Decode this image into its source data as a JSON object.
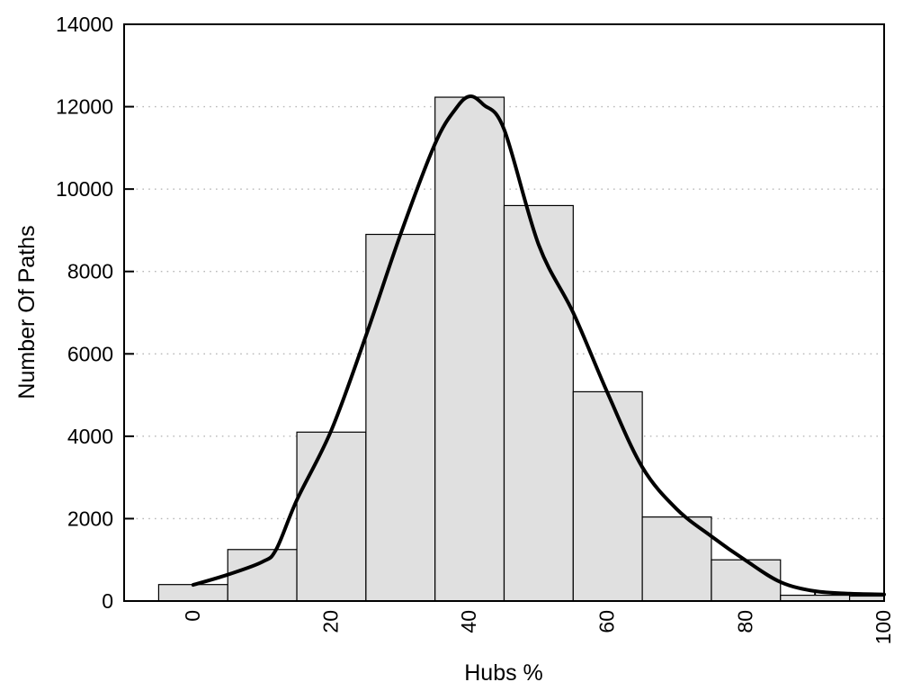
{
  "chart_data": {
    "type": "bar",
    "title": "",
    "xlabel": "Hubs %",
    "ylabel": "Number Of Paths",
    "xlim": [
      -10,
      100
    ],
    "ylim": [
      0,
      14000
    ],
    "x_ticks": [
      0,
      20,
      40,
      60,
      80,
      100
    ],
    "x_minor_tick_step": 10,
    "y_ticks": [
      0,
      2000,
      4000,
      6000,
      8000,
      10000,
      12000,
      14000
    ],
    "grid": "horizontal-dotted",
    "legend": "none",
    "x_tick_label_rotation_deg": -90,
    "bars": [
      {
        "x0": -5,
        "x1": 5,
        "value": 400
      },
      {
        "x0": 5,
        "x1": 15,
        "value": 1250
      },
      {
        "x0": 15,
        "x1": 25,
        "value": 4100
      },
      {
        "x0": 25,
        "x1": 35,
        "value": 8900
      },
      {
        "x0": 35,
        "x1": 45,
        "value": 12230
      },
      {
        "x0": 45,
        "x1": 55,
        "value": 9600
      },
      {
        "x0": 55,
        "x1": 65,
        "value": 5080
      },
      {
        "x0": 65,
        "x1": 75,
        "value": 2040
      },
      {
        "x0": 75,
        "x1": 85,
        "value": 1000
      },
      {
        "x0": 85,
        "x1": 95,
        "value": 140
      },
      {
        "x0": 95,
        "x1": 100,
        "value": 120
      }
    ],
    "curve": {
      "name": "density-curve",
      "points": [
        [
          0,
          390
        ],
        [
          5,
          640
        ],
        [
          10,
          950
        ],
        [
          12,
          1250
        ],
        [
          15,
          2450
        ],
        [
          20,
          4150
        ],
        [
          25,
          6440
        ],
        [
          30,
          8900
        ],
        [
          35,
          11100
        ],
        [
          38,
          11950
        ],
        [
          40,
          12250
        ],
        [
          42,
          12050
        ],
        [
          45,
          11450
        ],
        [
          50,
          8650
        ],
        [
          55,
          7000
        ],
        [
          60,
          5040
        ],
        [
          65,
          3250
        ],
        [
          70,
          2230
        ],
        [
          75,
          1570
        ],
        [
          80,
          980
        ],
        [
          85,
          460
        ],
        [
          90,
          240
        ],
        [
          95,
          180
        ],
        [
          100,
          160
        ]
      ]
    },
    "colors": {
      "background": "#ffffff",
      "bar_fill": "#e0e0e0",
      "bar_border": "#000000",
      "curve": "#000000",
      "grid": "#b8b8b8",
      "axis": "#000000",
      "text": "#000000"
    }
  }
}
